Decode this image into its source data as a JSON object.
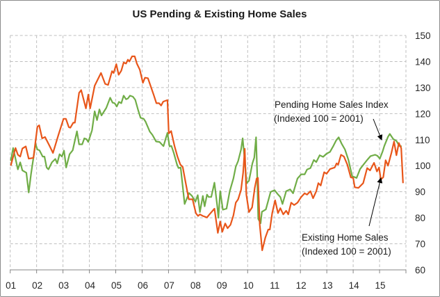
{
  "chart_data": {
    "type": "line",
    "title": "US Pending & Existing Home Sales",
    "xlabel": "",
    "ylabel": "",
    "xlim": [
      2001,
      2016
    ],
    "ylim": [
      60,
      150
    ],
    "y_ticks": [
      60,
      70,
      80,
      90,
      100,
      110,
      120,
      130,
      140,
      150
    ],
    "x_tick_labels": [
      "01",
      "02",
      "03",
      "04",
      "05",
      "06",
      "07",
      "08",
      "09",
      "10",
      "11",
      "12",
      "13",
      "14",
      "15"
    ],
    "y_axis_position": "right",
    "grid": true,
    "legend": "none (annotations with arrows)",
    "annotations": [
      {
        "series": "Pending Home Sales Index",
        "line1": "Pending Home Sales Index",
        "line2": "(Indexed 100 = 2001)",
        "points_to": [
          2015.05,
          108
        ]
      },
      {
        "series": "Existing Home Sales",
        "line1": "Existing Home Sales",
        "line2": "(Indexed 100 = 2001)",
        "points_to": [
          2015.05,
          95
        ]
      }
    ],
    "series": [
      {
        "name": "Pending Home Sales Index",
        "color": "#70ad47",
        "points": [
          [
            2001.02,
            101.8
          ],
          [
            2001.11,
            106.8
          ],
          [
            2001.29,
            98.6
          ],
          [
            2001.38,
            101.3
          ],
          [
            2001.46,
            98.2
          ],
          [
            2001.61,
            97.3
          ],
          [
            2001.7,
            89.7
          ],
          [
            2001.79,
            96.9
          ],
          [
            2001.96,
            108.4
          ],
          [
            2002.03,
            106.2
          ],
          [
            2002.11,
            105.9
          ],
          [
            2002.23,
            103.5
          ],
          [
            2002.3,
            103.5
          ],
          [
            2002.38,
            99.3
          ],
          [
            2002.45,
            98.6
          ],
          [
            2002.58,
            101.3
          ],
          [
            2002.71,
            102.6
          ],
          [
            2002.78,
            100.9
          ],
          [
            2002.87,
            104.4
          ],
          [
            2002.96,
            103.5
          ],
          [
            2003.04,
            105.8
          ],
          [
            2003.12,
            99.3
          ],
          [
            2003.25,
            104.4
          ],
          [
            2003.37,
            105.9
          ],
          [
            2003.53,
            113.2
          ],
          [
            2003.61,
            108.2
          ],
          [
            2003.73,
            108.2
          ],
          [
            2003.81,
            110.5
          ],
          [
            2003.89,
            110.2
          ],
          [
            2003.96,
            109.1
          ],
          [
            2004.1,
            113.6
          ],
          [
            2004.2,
            120.9
          ],
          [
            2004.29,
            117.5
          ],
          [
            2004.38,
            121.6
          ],
          [
            2004.46,
            119.3
          ],
          [
            2004.64,
            122.2
          ],
          [
            2004.79,
            126.1
          ],
          [
            2004.88,
            124.2
          ],
          [
            2004.96,
            124.0
          ],
          [
            2005.04,
            122.7
          ],
          [
            2005.12,
            124.5
          ],
          [
            2005.21,
            124.0
          ],
          [
            2005.3,
            126.9
          ],
          [
            2005.39,
            125.5
          ],
          [
            2005.46,
            125.8
          ],
          [
            2005.54,
            126.9
          ],
          [
            2005.65,
            126.5
          ],
          [
            2005.74,
            125.3
          ],
          [
            2005.85,
            121.3
          ],
          [
            2005.94,
            118.4
          ],
          [
            2006.06,
            118.0
          ],
          [
            2006.13,
            116.9
          ],
          [
            2006.29,
            113.1
          ],
          [
            2006.39,
            111.8
          ],
          [
            2006.53,
            109.3
          ],
          [
            2006.66,
            109.1
          ],
          [
            2006.81,
            107.5
          ],
          [
            2006.96,
            112.6
          ],
          [
            2007.04,
            107.4
          ],
          [
            2007.11,
            107.6
          ],
          [
            2007.2,
            104.9
          ],
          [
            2007.32,
            100.5
          ],
          [
            2007.38,
            99.1
          ],
          [
            2007.46,
            99.3
          ],
          [
            2007.61,
            85.3
          ],
          [
            2007.78,
            89.5
          ],
          [
            2007.89,
            88.4
          ],
          [
            2008.02,
            86.2
          ],
          [
            2008.11,
            88.7
          ],
          [
            2008.19,
            82.2
          ],
          [
            2008.3,
            88.4
          ],
          [
            2008.37,
            84.4
          ],
          [
            2008.46,
            88.9
          ],
          [
            2008.52,
            88.0
          ],
          [
            2008.62,
            88.0
          ],
          [
            2008.74,
            93.5
          ],
          [
            2008.85,
            84.4
          ],
          [
            2008.89,
            80.0
          ],
          [
            2008.96,
            90.2
          ],
          [
            2009.06,
            83.1
          ],
          [
            2009.2,
            83.5
          ],
          [
            2009.32,
            90.2
          ],
          [
            2009.46,
            95.1
          ],
          [
            2009.55,
            99.6
          ],
          [
            2009.64,
            101.8
          ],
          [
            2009.75,
            106.2
          ],
          [
            2009.81,
            110.5
          ],
          [
            2009.88,
            103.1
          ],
          [
            2009.96,
            93.3
          ],
          [
            2010.05,
            94.2
          ],
          [
            2010.18,
            100.9
          ],
          [
            2010.25,
            103.1
          ],
          [
            2010.32,
            110.9
          ],
          [
            2010.36,
            97.8
          ],
          [
            2010.4,
            79.6
          ],
          [
            2010.49,
            77.9
          ],
          [
            2010.54,
            82.3
          ],
          [
            2010.69,
            83.2
          ],
          [
            2010.87,
            89.9
          ],
          [
            2011.02,
            90.6
          ],
          [
            2011.13,
            89.2
          ],
          [
            2011.24,
            88.0
          ],
          [
            2011.32,
            85.3
          ],
          [
            2011.46,
            90.2
          ],
          [
            2011.61,
            90.9
          ],
          [
            2011.72,
            89.4
          ],
          [
            2011.89,
            95.1
          ],
          [
            2012.03,
            96.7
          ],
          [
            2012.16,
            96.7
          ],
          [
            2012.25,
            98.5
          ],
          [
            2012.38,
            99.1
          ],
          [
            2012.51,
            102.2
          ],
          [
            2012.6,
            101.4
          ],
          [
            2012.73,
            104.0
          ],
          [
            2012.86,
            103.4
          ],
          [
            2012.99,
            104.6
          ],
          [
            2013.12,
            105.3
          ],
          [
            2013.25,
            107.6
          ],
          [
            2013.36,
            109.8
          ],
          [
            2013.45,
            110.9
          ],
          [
            2013.56,
            108.5
          ],
          [
            2013.69,
            106.2
          ],
          [
            2013.82,
            102.2
          ],
          [
            2013.96,
            96.0
          ],
          [
            2014.13,
            95.3
          ],
          [
            2014.26,
            98.7
          ],
          [
            2014.39,
            100.4
          ],
          [
            2014.53,
            102.2
          ],
          [
            2014.66,
            103.7
          ],
          [
            2014.83,
            104.2
          ],
          [
            2014.92,
            103.8
          ],
          [
            2015.01,
            102.7
          ],
          [
            2015.11,
            105.3
          ],
          [
            2015.18,
            107.6
          ],
          [
            2015.32,
            111.1
          ],
          [
            2015.39,
            112.2
          ],
          [
            2015.52,
            110.2
          ],
          [
            2015.64,
            109.5
          ],
          [
            2015.75,
            107.6
          ],
          [
            2015.84,
            107.4
          ]
        ]
      },
      {
        "name": "Existing Home Sales",
        "color": "#e8561a",
        "points": [
          [
            2001.02,
            100.0
          ],
          [
            2001.2,
            106.8
          ],
          [
            2001.29,
            104.2
          ],
          [
            2001.38,
            103.5
          ],
          [
            2001.46,
            106.6
          ],
          [
            2001.59,
            107.4
          ],
          [
            2001.7,
            102.7
          ],
          [
            2001.88,
            103.0
          ],
          [
            2002.03,
            115.0
          ],
          [
            2002.1,
            115.5
          ],
          [
            2002.21,
            110.5
          ],
          [
            2002.32,
            111.0
          ],
          [
            2002.49,
            107.6
          ],
          [
            2002.62,
            104.9
          ],
          [
            2002.82,
            111.6
          ],
          [
            2003.02,
            118.0
          ],
          [
            2003.11,
            118.0
          ],
          [
            2003.22,
            114.8
          ],
          [
            2003.28,
            114.6
          ],
          [
            2003.39,
            116.5
          ],
          [
            2003.45,
            116.5
          ],
          [
            2003.61,
            128.0
          ],
          [
            2003.69,
            129.0
          ],
          [
            2003.87,
            122.0
          ],
          [
            2003.96,
            127.3
          ],
          [
            2004.03,
            122.0
          ],
          [
            2004.2,
            130.7
          ],
          [
            2004.44,
            135.6
          ],
          [
            2004.6,
            131.4
          ],
          [
            2004.71,
            131.0
          ],
          [
            2004.86,
            136.3
          ],
          [
            2004.92,
            135.6
          ],
          [
            2005.02,
            139.0
          ],
          [
            2005.11,
            134.9
          ],
          [
            2005.21,
            136.5
          ],
          [
            2005.3,
            139.6
          ],
          [
            2005.39,
            139.2
          ],
          [
            2005.46,
            140.7
          ],
          [
            2005.52,
            140.0
          ],
          [
            2005.62,
            142.0
          ],
          [
            2005.72,
            142.0
          ],
          [
            2005.8,
            139.2
          ],
          [
            2005.91,
            136.9
          ],
          [
            2006.03,
            131.8
          ],
          [
            2006.11,
            133.8
          ],
          [
            2006.22,
            133.6
          ],
          [
            2006.44,
            127.1
          ],
          [
            2006.54,
            124.0
          ],
          [
            2006.64,
            124.0
          ],
          [
            2006.72,
            123.1
          ],
          [
            2006.8,
            124.6
          ],
          [
            2006.96,
            125.2
          ],
          [
            2007.01,
            112.4
          ],
          [
            2007.1,
            113.3
          ],
          [
            2007.23,
            107.5
          ],
          [
            2007.34,
            103.5
          ],
          [
            2007.45,
            100.4
          ],
          [
            2007.54,
            99.5
          ],
          [
            2007.62,
            95.0
          ],
          [
            2007.77,
            87.1
          ],
          [
            2007.91,
            87.1
          ],
          [
            2008.04,
            81.7
          ],
          [
            2008.12,
            80.7
          ],
          [
            2008.19,
            81.3
          ],
          [
            2008.3,
            80.7
          ],
          [
            2008.46,
            80.1
          ],
          [
            2008.52,
            80.9
          ],
          [
            2008.74,
            83.5
          ],
          [
            2008.87,
            74.2
          ],
          [
            2008.96,
            78.6
          ],
          [
            2009.04,
            74.6
          ],
          [
            2009.15,
            77.8
          ],
          [
            2009.24,
            76.0
          ],
          [
            2009.35,
            77.3
          ],
          [
            2009.46,
            80.9
          ],
          [
            2009.55,
            85.8
          ],
          [
            2009.64,
            87.1
          ],
          [
            2009.75,
            90.7
          ],
          [
            2009.83,
            97.3
          ],
          [
            2009.89,
            106.5
          ],
          [
            2009.95,
            88.9
          ],
          [
            2010.05,
            82.2
          ],
          [
            2010.17,
            84.0
          ],
          [
            2010.27,
            91.5
          ],
          [
            2010.34,
            95.1
          ],
          [
            2010.39,
            95.3
          ],
          [
            2010.46,
            77.3
          ],
          [
            2010.55,
            67.5
          ],
          [
            2010.67,
            72.4
          ],
          [
            2010.78,
            75.5
          ],
          [
            2010.84,
            75.5
          ],
          [
            2010.93,
            81.8
          ],
          [
            2011.04,
            86.7
          ],
          [
            2011.15,
            81.8
          ],
          [
            2011.24,
            83.7
          ],
          [
            2011.35,
            81.3
          ],
          [
            2011.46,
            82.7
          ],
          [
            2011.54,
            81.3
          ],
          [
            2011.65,
            85.8
          ],
          [
            2011.76,
            84.9
          ],
          [
            2011.89,
            85.8
          ],
          [
            2012.03,
            88.0
          ],
          [
            2012.16,
            89.4
          ],
          [
            2012.25,
            88.9
          ],
          [
            2012.38,
            90.2
          ],
          [
            2012.48,
            87.5
          ],
          [
            2012.6,
            90.2
          ],
          [
            2012.68,
            93.3
          ],
          [
            2012.77,
            92.4
          ],
          [
            2012.9,
            97.5
          ],
          [
            2012.99,
            96.9
          ],
          [
            2013.12,
            98.7
          ],
          [
            2013.3,
            99.3
          ],
          [
            2013.37,
            100.9
          ],
          [
            2013.43,
            100.4
          ],
          [
            2013.54,
            104.2
          ],
          [
            2013.65,
            103.5
          ],
          [
            2013.78,
            100.4
          ],
          [
            2013.91,
            95.5
          ],
          [
            2014.0,
            95.3
          ],
          [
            2014.06,
            91.7
          ],
          [
            2014.2,
            91.5
          ],
          [
            2014.38,
            93.3
          ],
          [
            2014.53,
            99.1
          ],
          [
            2014.64,
            98.2
          ],
          [
            2014.79,
            101.1
          ],
          [
            2014.9,
            97.8
          ],
          [
            2014.98,
            99.3
          ],
          [
            2015.05,
            94.7
          ],
          [
            2015.14,
            95.6
          ],
          [
            2015.23,
            102.1
          ],
          [
            2015.32,
            100.0
          ],
          [
            2015.45,
            104.9
          ],
          [
            2015.55,
            109.3
          ],
          [
            2015.64,
            104.0
          ],
          [
            2015.73,
            108.7
          ],
          [
            2015.82,
            106.7
          ],
          [
            2015.89,
            93.3
          ]
        ]
      }
    ]
  }
}
